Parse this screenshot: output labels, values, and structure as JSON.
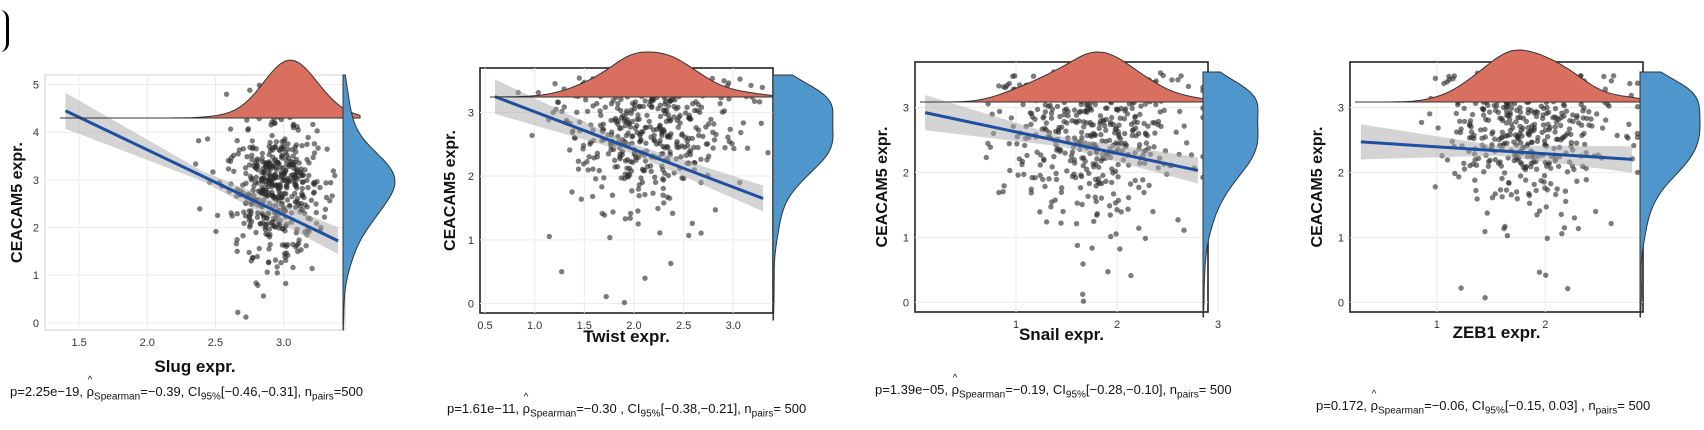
{
  "chart_data": [
    {
      "type": "scatter",
      "xlabel": "Slug expr.",
      "ylabel": "CEACAM5 expr.",
      "xlim": [
        1.25,
        3.45
      ],
      "ylim": [
        -0.15,
        5.2
      ],
      "xticks": [
        "1.5",
        "2.0",
        "2.5",
        "3.0"
      ],
      "xtick_values": [
        1.5,
        2.0,
        2.5,
        3.0
      ],
      "yticks": [
        "0",
        "1",
        "2",
        "3",
        "4",
        "5"
      ],
      "ytick_values": [
        0,
        1,
        2,
        3,
        4,
        5
      ],
      "fit_line": {
        "x0": 1.4,
        "y0": 4.45,
        "x1": 3.4,
        "y1": 1.72
      },
      "scatter_center": {
        "x": 2.95,
        "y": 2.45
      },
      "scatter_spread": {
        "x": 0.17,
        "y": 0.85
      },
      "n_points": 500,
      "boxed": false,
      "stats": {
        "p": "p=2.25e−19, ",
        "rho": "ρ",
        "rho_sub": "Spearman",
        "rho_val": "=−0.39, ",
        "ci": "CI",
        "ci_sub": "95%",
        "ci_val": "[−0.46,−0.31]",
        "n": ", n",
        "n_sub": "pairs",
        "n_val": "=500"
      }
    },
    {
      "type": "scatter",
      "xlabel": "Twist expr.",
      "ylabel": "CEACAM5 expr.",
      "xlim": [
        0.45,
        3.4
      ],
      "ylim": [
        -0.15,
        3.7
      ],
      "xticks": [
        "0.5",
        "1.0",
        "1.5",
        "2.0",
        "2.5",
        "3.0"
      ],
      "xtick_values": [
        0.5,
        1.0,
        1.5,
        2.0,
        2.5,
        3.0
      ],
      "yticks": [
        "0",
        "1",
        "2",
        "3"
      ],
      "ytick_values": [
        0,
        1,
        2,
        3
      ],
      "fit_line": {
        "x0": 0.6,
        "y0": 3.25,
        "x1": 3.3,
        "y1": 1.65
      },
      "scatter_center": {
        "x": 2.15,
        "y": 2.3
      },
      "scatter_spread": {
        "x": 0.42,
        "y": 0.75
      },
      "n_points": 500,
      "boxed": true,
      "stats": {
        "p": "p=1.61e−11, ",
        "rho": "ρ",
        "rho_sub": "Spearman",
        "rho_val": "=−0.30 , ",
        "ci": "CI",
        "ci_sub": "95%",
        "ci_val": "[−0.38,−0.21]",
        "n": ", n",
        "n_sub": "pairs",
        "n_val": "= 500"
      }
    },
    {
      "type": "scatter",
      "xlabel": "Snail expr.",
      "ylabel": "CEACAM5 expr.",
      "xlim": [
        0.0,
        2.9
      ],
      "ylim": [
        -0.15,
        3.7
      ],
      "xticks": [
        "1",
        "2",
        "3"
      ],
      "xtick_values": [
        1,
        2,
        3
      ],
      "yticks": [
        "0",
        "1",
        "2",
        "3"
      ],
      "ytick_values": [
        0,
        1,
        2,
        3
      ],
      "fit_line": {
        "x0": 0.1,
        "y0": 2.92,
        "x1": 2.8,
        "y1": 2.03
      },
      "scatter_center": {
        "x": 1.75,
        "y": 2.3
      },
      "scatter_spread": {
        "x": 0.42,
        "y": 0.8
      },
      "n_points": 500,
      "boxed": true,
      "stats": {
        "p": "p=1.39e−05, ",
        "rho": "ρ",
        "rho_sub": "Spearman",
        "rho_val": "=−0.19, ",
        "ci": "CI",
        "ci_sub": "95%",
        "ci_val": "[−0.28,−0.10]",
        "n": ", n",
        "n_sub": "pairs",
        "n_val": "= 500"
      }
    },
    {
      "type": "scatter",
      "xlabel": "ZEB1 expr.",
      "ylabel": "CEACAM5 expr.",
      "xlim": [
        0.2,
        2.9
      ],
      "ylim": [
        -0.15,
        3.7
      ],
      "xticks": [
        "1",
        "2"
      ],
      "xtick_values": [
        1,
        2
      ],
      "yticks": [
        "0",
        "1",
        "2",
        "3"
      ],
      "ytick_values": [
        0,
        1,
        2,
        3
      ],
      "fit_line": {
        "x0": 0.3,
        "y0": 2.47,
        "x1": 2.8,
        "y1": 2.2
      },
      "scatter_center": {
        "x": 1.85,
        "y": 2.3
      },
      "scatter_spread": {
        "x": 0.42,
        "y": 0.8
      },
      "n_points": 500,
      "boxed": true,
      "stats": {
        "p": "p=0.172, ",
        "rho": "ρ",
        "rho_sub": "Spearman",
        "rho_val": "=−0.06, ",
        "ci": "CI",
        "ci_sub": "95%",
        "ci_val": "[−0.15, 0.03]",
        "n": " , n",
        "n_sub": "pairs",
        "n_val": "= 500"
      }
    }
  ]
}
